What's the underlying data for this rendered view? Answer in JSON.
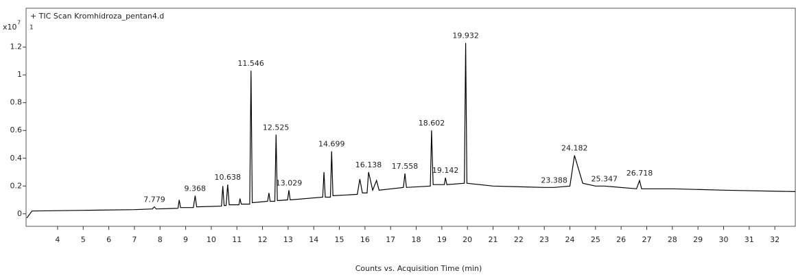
{
  "chart_data": {
    "type": "line",
    "title": "+ TIC Scan Kromhidroza_pentan4.d",
    "panel_label": "1",
    "y_multiplier": "x10",
    "y_exponent": "7",
    "x_axis_label": "Counts vs. Acquisition Time (min)",
    "xlim": [
      2.77,
      32.8
    ],
    "ylim": [
      -0.09,
      1.48
    ],
    "xticks": [
      4,
      5,
      6,
      7,
      8,
      9,
      10,
      11,
      12,
      13,
      14,
      15,
      16,
      17,
      18,
      19,
      20,
      21,
      22,
      23,
      24,
      25,
      26,
      27,
      28,
      29,
      30,
      31,
      32
    ],
    "yticks": [
      0,
      0.2,
      0.4,
      0.6,
      0.8,
      1,
      1.2
    ],
    "color": "#000000",
    "x": [
      2.8,
      3.0,
      5,
      7,
      7.7,
      7.78,
      7.85,
      8.7,
      8.75,
      8.8,
      9.3,
      9.37,
      9.43,
      10.4,
      10.45,
      10.5,
      10.58,
      10.64,
      10.7,
      11.08,
      11.12,
      11.17,
      11.5,
      11.55,
      11.6,
      12.2,
      12.25,
      12.3,
      12.48,
      12.53,
      12.58,
      12.98,
      13.03,
      13.08,
      14.35,
      14.4,
      14.45,
      14.65,
      14.7,
      14.75,
      15.7,
      15.8,
      15.9,
      16.08,
      16.14,
      16.3,
      16.45,
      16.55,
      17.5,
      17.56,
      17.62,
      18.55,
      18.6,
      18.66,
      19.1,
      19.14,
      19.2,
      19.88,
      19.93,
      19.98,
      21,
      23,
      23.39,
      24,
      24.18,
      24.5,
      25,
      25.35,
      26.6,
      26.72,
      26.8,
      28,
      30,
      32.8
    ],
    "values": [
      -0.03,
      0.02,
      0.025,
      0.03,
      0.035,
      0.05,
      0.035,
      0.04,
      0.1,
      0.045,
      0.045,
      0.13,
      0.05,
      0.055,
      0.2,
      0.06,
      0.06,
      0.21,
      0.065,
      0.065,
      0.11,
      0.07,
      0.07,
      1.03,
      0.08,
      0.09,
      0.15,
      0.09,
      0.09,
      0.57,
      0.095,
      0.1,
      0.17,
      0.1,
      0.12,
      0.3,
      0.12,
      0.12,
      0.45,
      0.13,
      0.14,
      0.25,
      0.15,
      0.15,
      0.3,
      0.17,
      0.24,
      0.17,
      0.19,
      0.29,
      0.19,
      0.2,
      0.6,
      0.21,
      0.21,
      0.26,
      0.21,
      0.22,
      1.23,
      0.22,
      0.2,
      0.19,
      0.19,
      0.2,
      0.42,
      0.22,
      0.2,
      0.2,
      0.18,
      0.24,
      0.18,
      0.18,
      0.17,
      0.16
    ],
    "annotations": [
      {
        "x": 7.779,
        "y": 0.05
      },
      {
        "x": 9.368,
        "y": 0.13
      },
      {
        "x": 10.638,
        "y": 0.21
      },
      {
        "x": 11.546,
        "y": 1.03
      },
      {
        "x": 12.525,
        "y": 0.57
      },
      {
        "x": 13.029,
        "y": 0.17
      },
      {
        "x": 14.699,
        "y": 0.45
      },
      {
        "x": 16.138,
        "y": 0.3
      },
      {
        "x": 17.558,
        "y": 0.29
      },
      {
        "x": 18.602,
        "y": 0.6
      },
      {
        "x": 19.142,
        "y": 0.26
      },
      {
        "x": 19.932,
        "y": 1.23
      },
      {
        "x": 23.388,
        "y": 0.19
      },
      {
        "x": 24.182,
        "y": 0.42
      },
      {
        "x": 25.347,
        "y": 0.2
      },
      {
        "x": 26.718,
        "y": 0.24
      }
    ]
  }
}
